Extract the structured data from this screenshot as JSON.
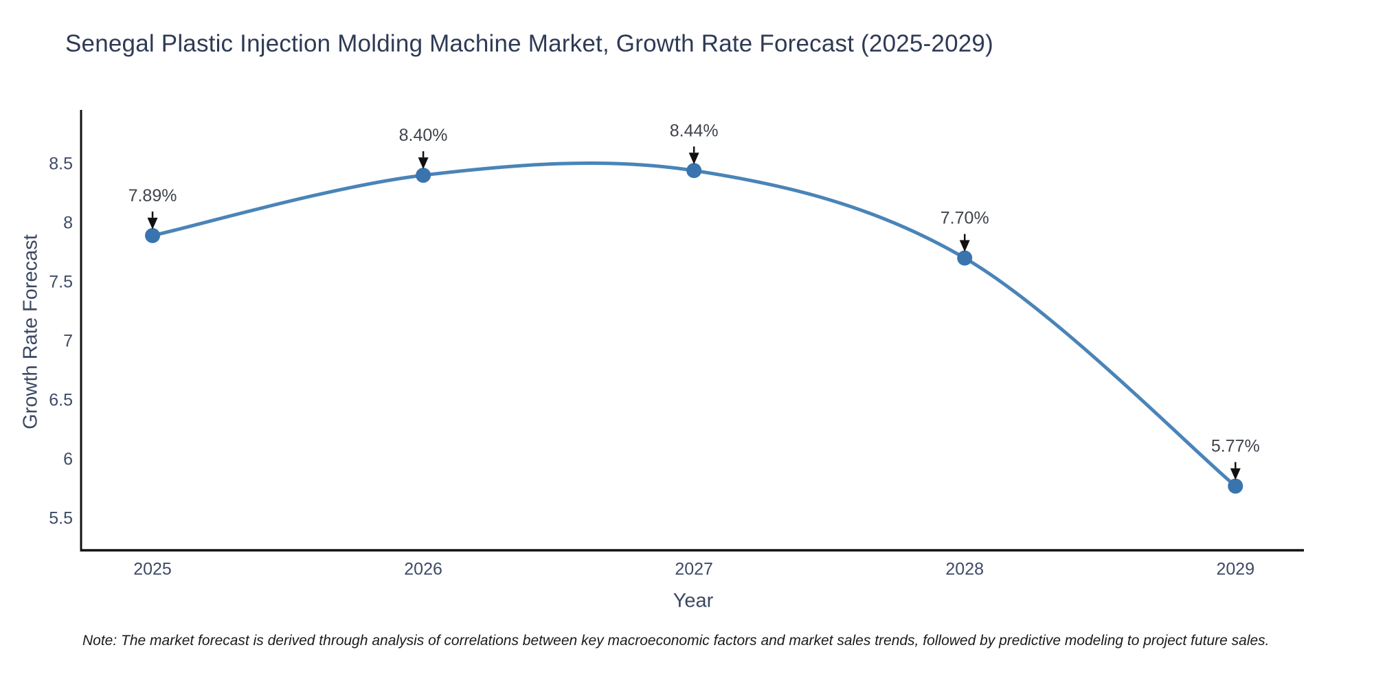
{
  "page": {
    "background": "#ffffff"
  },
  "chart_data": {
    "type": "line",
    "title": "Senegal Plastic Injection Molding Machine Market, Growth Rate Forecast (2025-2029)",
    "xlabel": "Year",
    "ylabel": "Growth Rate Forecast",
    "x": [
      2025,
      2026,
      2027,
      2028,
      2029
    ],
    "values": [
      7.89,
      8.4,
      8.44,
      7.7,
      5.77
    ],
    "point_labels": [
      "7.89%",
      "8.40%",
      "8.44%",
      "7.70%",
      "5.77%"
    ],
    "x_tick_labels": [
      "2025",
      "2026",
      "2027",
      "2028",
      "2029"
    ],
    "y_ticks": [
      8.5,
      8.0,
      7.5,
      7.0,
      6.5,
      6.0,
      5.5
    ],
    "y_tick_labels": [
      "8.5",
      "8",
      "7.5",
      "7",
      "6.5",
      "6",
      "5.5"
    ],
    "xlim": [
      2024.736,
      2029.253
    ],
    "ylim": [
      5.227,
      8.953
    ],
    "grid": false,
    "legend": null,
    "line_style": "smooth-spline",
    "annotation_arrows": true,
    "colors": {
      "line": "#4a84b8",
      "marker": "#3a74ae",
      "arrow": "#111111",
      "axis": "#111111",
      "title": "#2e3a55",
      "tick_label": "#3e4a66",
      "axis_title": "#3b4862",
      "annotation": "#3f434c",
      "note": "#1a1a1a"
    }
  },
  "note": {
    "text": "Note: The market forecast is derived through analysis of correlations between key macroeconomic factors and market sales trends, followed by predictive modeling to project future sales."
  }
}
